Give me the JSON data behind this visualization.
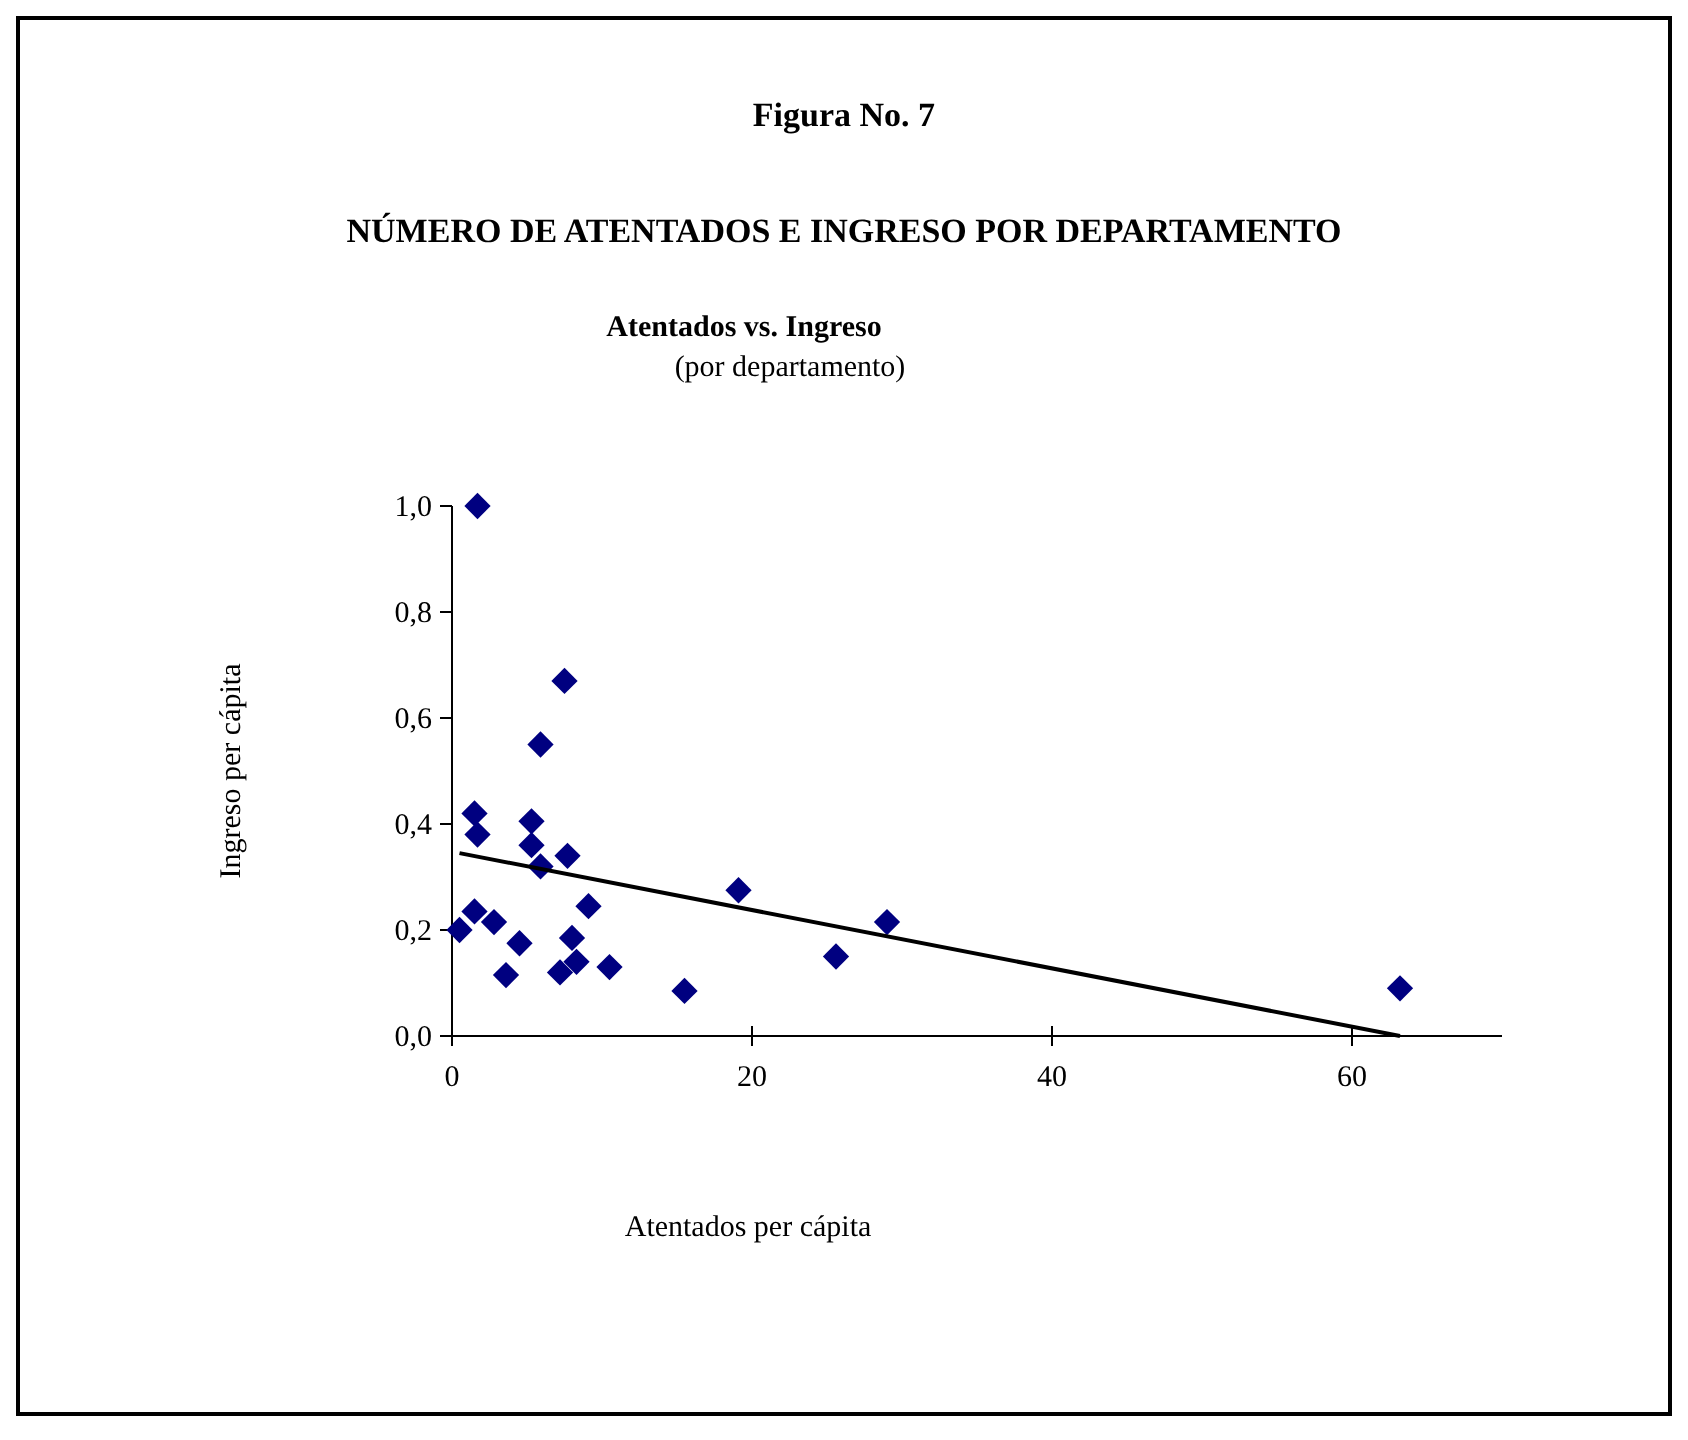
{
  "chart_data": {
    "type": "scatter",
    "title": "Atentados vs. Ingreso",
    "subtitle": "(por departamento)",
    "annotations": [
      "Figura No. 7",
      "NÚMERO DE ATENTADOS E INGRESO POR DEPARTAMENTO"
    ],
    "xlabel": "Atentados per cápita",
    "ylabel": "Ingreso per cápita",
    "xlim": [
      0,
      70
    ],
    "xticks": [
      0,
      20,
      40,
      60
    ],
    "ylim": [
      0,
      1
    ],
    "yticks": [
      {
        "value": 0,
        "label": "0,0"
      },
      {
        "value": 0.2,
        "label": "0,2"
      },
      {
        "value": 0.4,
        "label": "0,4"
      },
      {
        "value": 0.6,
        "label": "0,6"
      },
      {
        "value": 0.8,
        "label": "0,8"
      },
      {
        "value": 1,
        "label": "1,0"
      }
    ],
    "grid": false,
    "marker": "diamond",
    "series": [
      {
        "color": "#000080",
        "x": [
          1.7,
          1.5,
          1.7,
          0.5,
          1.5,
          2.8,
          4.5,
          3.6,
          7.5,
          5.9,
          5.3,
          5.3,
          5.9,
          7.7,
          9.1,
          8.0,
          7.2,
          8.3,
          10.5,
          15.5,
          19.1,
          25.6,
          29,
          63.2
        ],
        "values": [
          1.0,
          0.42,
          0.38,
          0.2,
          0.235,
          0.215,
          0.175,
          0.115,
          0.67,
          0.55,
          0.405,
          0.36,
          0.32,
          0.34,
          0.245,
          0.185,
          0.12,
          0.14,
          0.13,
          0.085,
          0.275,
          0.15,
          0.215,
          0.09
        ]
      },
      {
        "type": "line",
        "color": "#000000",
        "marker": "none",
        "x": [
          0.5,
          63.2
        ],
        "values": [
          0.345,
          0
        ]
      }
    ]
  }
}
